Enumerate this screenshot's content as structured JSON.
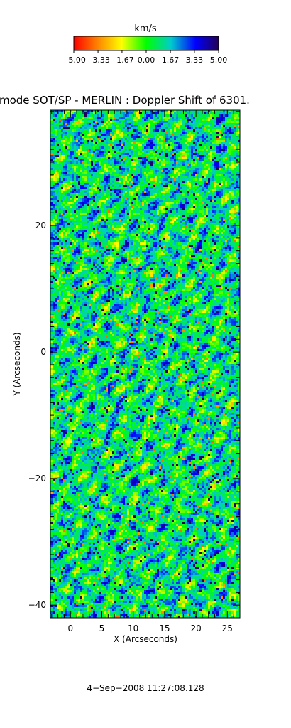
{
  "chart_data": {
    "type": "heatmap",
    "title": "mode SOT/SP - MERLIN : Doppler Shift of 6301.",
    "xlabel": "X (Arcseconds)",
    "ylabel": "Y (Arcseconds)",
    "xlim": [
      -3.2,
      27.0
    ],
    "ylim": [
      -42.0,
      38.2
    ],
    "x_ticks": [
      0,
      5,
      10,
      15,
      20,
      25
    ],
    "y_ticks": [
      -40,
      -20,
      0,
      20
    ],
    "colorbar": {
      "label": "km/s",
      "range": [
        -5.0,
        5.0
      ],
      "tick_values": [
        -5.0,
        -3.33,
        -1.67,
        0.0,
        1.67,
        3.33,
        5.0
      ],
      "tick_labels": [
        "−5.00",
        "−3.33",
        "−1.67",
        "0.00",
        "1.67",
        "3.33",
        "5.00"
      ],
      "colormap": [
        "#ff0000",
        "#ff8800",
        "#ffff00",
        "#00ff00",
        "#00cccc",
        "#0000ff",
        "#220055"
      ]
    }
  },
  "footer": {
    "timestamp": "4−Sep−2008 11:27:08.128"
  }
}
